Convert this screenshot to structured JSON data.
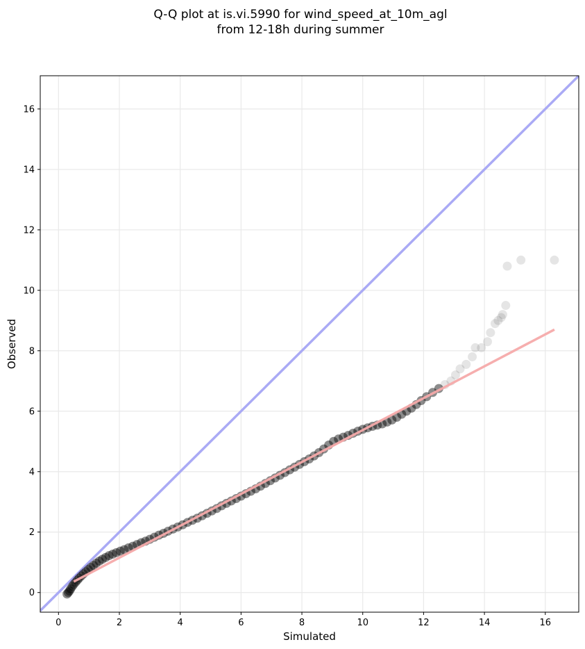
{
  "chart_data": {
    "type": "scatter",
    "title_lines": [
      "Q-Q plot at is.vi.5990 for wind_speed_at_10m_agl",
      "from 12-18h during summer"
    ],
    "xlabel": "Simulated",
    "ylabel": "Observed",
    "xlim": [
      -0.6,
      17.1
    ],
    "ylim": [
      -0.65,
      17.1
    ],
    "xticks": [
      0,
      2,
      4,
      6,
      8,
      10,
      12,
      14,
      16
    ],
    "yticks": [
      0,
      2,
      4,
      6,
      8,
      10,
      12,
      14,
      16
    ],
    "grid": true,
    "reference_line": {
      "name": "1:1",
      "color": "#aaaaf5",
      "x": [
        -0.6,
        17.1
      ],
      "y": [
        -0.6,
        17.1
      ]
    },
    "fit_line": {
      "color": "#f5aaaa",
      "x": [
        0.5,
        16.3
      ],
      "y": [
        0.36,
        8.7
      ]
    },
    "points_color": "#000000",
    "points": [
      [
        0.28,
        -0.05
      ],
      [
        0.32,
        0.0
      ],
      [
        0.36,
        0.05
      ],
      [
        0.4,
        0.12
      ],
      [
        0.45,
        0.2
      ],
      [
        0.5,
        0.27
      ],
      [
        0.56,
        0.34
      ],
      [
        0.62,
        0.41
      ],
      [
        0.68,
        0.48
      ],
      [
        0.75,
        0.55
      ],
      [
        0.82,
        0.62
      ],
      [
        0.9,
        0.69
      ],
      [
        0.98,
        0.76
      ],
      [
        1.06,
        0.83
      ],
      [
        1.15,
        0.9
      ],
      [
        1.24,
        0.97
      ],
      [
        1.34,
        1.04
      ],
      [
        1.44,
        1.1
      ],
      [
        1.55,
        1.16
      ],
      [
        1.66,
        1.22
      ],
      [
        1.78,
        1.27
      ],
      [
        1.9,
        1.32
      ],
      [
        2.03,
        1.37
      ],
      [
        2.16,
        1.42
      ],
      [
        2.3,
        1.48
      ],
      [
        2.44,
        1.53
      ],
      [
        2.58,
        1.59
      ],
      [
        2.72,
        1.65
      ],
      [
        2.86,
        1.7
      ],
      [
        3.0,
        1.76
      ],
      [
        3.15,
        1.83
      ],
      [
        3.3,
        1.9
      ],
      [
        3.45,
        1.96
      ],
      [
        3.6,
        2.03
      ],
      [
        3.76,
        2.1
      ],
      [
        3.92,
        2.17
      ],
      [
        4.08,
        2.24
      ],
      [
        4.24,
        2.32
      ],
      [
        4.4,
        2.39
      ],
      [
        4.56,
        2.46
      ],
      [
        4.72,
        2.54
      ],
      [
        4.88,
        2.62
      ],
      [
        5.04,
        2.7
      ],
      [
        5.2,
        2.78
      ],
      [
        5.36,
        2.87
      ],
      [
        5.52,
        2.95
      ],
      [
        5.68,
        3.03
      ],
      [
        5.84,
        3.11
      ],
      [
        6.0,
        3.19
      ],
      [
        6.16,
        3.27
      ],
      [
        6.32,
        3.35
      ],
      [
        6.48,
        3.43
      ],
      [
        6.64,
        3.52
      ],
      [
        6.8,
        3.61
      ],
      [
        6.96,
        3.7
      ],
      [
        7.12,
        3.79
      ],
      [
        7.28,
        3.88
      ],
      [
        7.44,
        3.97
      ],
      [
        7.6,
        4.06
      ],
      [
        7.76,
        4.15
      ],
      [
        7.92,
        4.24
      ],
      [
        8.08,
        4.33
      ],
      [
        8.24,
        4.42
      ],
      [
        8.4,
        4.52
      ],
      [
        8.56,
        4.63
      ],
      [
        8.72,
        4.75
      ],
      [
        8.88,
        4.88
      ],
      [
        9.04,
        5.0
      ],
      [
        9.2,
        5.08
      ],
      [
        9.36,
        5.14
      ],
      [
        9.52,
        5.2
      ],
      [
        9.68,
        5.27
      ],
      [
        9.84,
        5.34
      ],
      [
        10.0,
        5.4
      ],
      [
        10.16,
        5.45
      ],
      [
        10.32,
        5.5
      ],
      [
        10.48,
        5.54
      ],
      [
        10.64,
        5.58
      ],
      [
        10.8,
        5.64
      ],
      [
        10.96,
        5.71
      ],
      [
        11.12,
        5.8
      ],
      [
        11.28,
        5.9
      ],
      [
        11.44,
        6.0
      ],
      [
        11.6,
        6.1
      ],
      [
        11.76,
        6.22
      ],
      [
        11.92,
        6.35
      ],
      [
        12.1,
        6.48
      ],
      [
        12.3,
        6.62
      ],
      [
        12.5,
        6.75
      ],
      [
        12.7,
        6.88
      ],
      [
        12.9,
        7.0
      ],
      [
        13.05,
        7.2
      ],
      [
        13.2,
        7.4
      ],
      [
        13.4,
        7.55
      ],
      [
        13.6,
        7.8
      ],
      [
        13.7,
        8.1
      ],
      [
        13.9,
        8.1
      ],
      [
        14.1,
        8.3
      ],
      [
        14.2,
        8.6
      ],
      [
        14.35,
        8.9
      ],
      [
        14.45,
        9.0
      ],
      [
        14.55,
        9.1
      ],
      [
        14.6,
        9.2
      ],
      [
        14.7,
        9.5
      ],
      [
        14.75,
        10.8
      ],
      [
        15.2,
        11.0
      ],
      [
        16.3,
        11.0
      ]
    ]
  }
}
